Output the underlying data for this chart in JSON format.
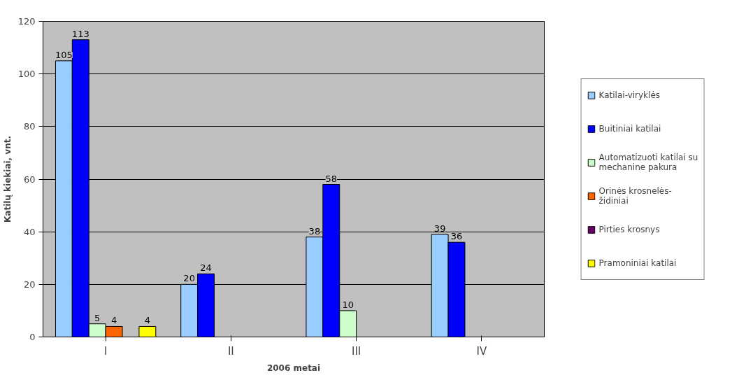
{
  "chart_data": {
    "type": "bar",
    "xlabel": "2006 metai",
    "ylabel": "Katilų kiekiai, vnt.",
    "categories": [
      "I",
      "II",
      "III",
      "IV"
    ],
    "series": [
      {
        "name": "Katilai-viryklės",
        "color": "#99ccff",
        "values": [
          105,
          20,
          38,
          39
        ]
      },
      {
        "name": "Buitiniai katilai",
        "color": "#0000ff",
        "values": [
          113,
          24,
          58,
          36
        ]
      },
      {
        "name": "Automatizuoti katilai su mechanine pakura",
        "color": "#ccffcc",
        "values": [
          5,
          null,
          10,
          null
        ]
      },
      {
        "name": "Orinės krosnelės-židiniai",
        "color": "#ff6600",
        "values": [
          4,
          null,
          null,
          null
        ]
      },
      {
        "name": "Pirties krosnys",
        "color": "#660066",
        "values": [
          null,
          null,
          null,
          null
        ]
      },
      {
        "name": "Pramoniniai katilai",
        "color": "#ffff00",
        "values": [
          4,
          null,
          null,
          null
        ]
      }
    ],
    "ylim": [
      0,
      120
    ],
    "yticks": [
      0,
      20,
      40,
      60,
      80,
      100,
      120
    ],
    "grid": "y",
    "legend": "right",
    "data_labels": true
  }
}
